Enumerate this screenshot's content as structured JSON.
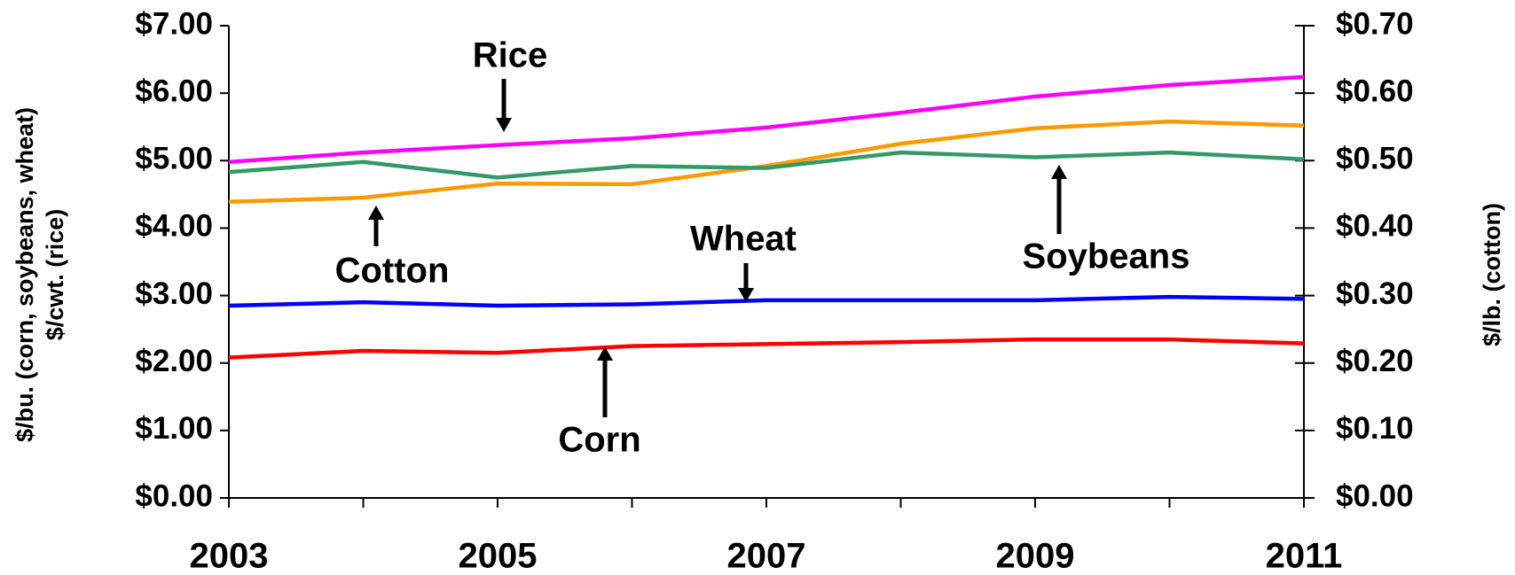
{
  "chart_data": {
    "type": "line",
    "x": [
      2003,
      2004,
      2005,
      2006,
      2007,
      2008,
      2009,
      2010,
      2011
    ],
    "xlim": [
      2003,
      2011
    ],
    "xticks": [
      2003,
      2005,
      2007,
      2009,
      2011
    ],
    "ylim": [
      0,
      7
    ],
    "yticks": [
      {
        "value": 0,
        "label": "$0.00"
      },
      {
        "value": 1,
        "label": "$1.00"
      },
      {
        "value": 2,
        "label": "$2.00"
      },
      {
        "value": 3,
        "label": "$3.00"
      },
      {
        "value": 4,
        "label": "$4.00"
      },
      {
        "value": 5,
        "label": "$5.00"
      },
      {
        "value": 6,
        "label": "$6.00"
      },
      {
        "value": 7,
        "label": "$7.00"
      }
    ],
    "y2lim": [
      0,
      0.7
    ],
    "y2ticks": [
      {
        "value": 0,
        "label": "$0.00"
      },
      {
        "value": 0.1,
        "label": "$0.10"
      },
      {
        "value": 0.2,
        "label": "$0.20"
      },
      {
        "value": 0.3,
        "label": "$0.30"
      },
      {
        "value": 0.4,
        "label": "$0.40"
      },
      {
        "value": 0.5,
        "label": "$0.50"
      },
      {
        "value": 0.6,
        "label": "$0.60"
      },
      {
        "value": 0.7,
        "label": "$0.70"
      }
    ],
    "y_label": [
      "$/bu. (corn, soybeans, wheat)",
      "$/cwt. (rice)"
    ],
    "y2_label": "$/lb. (cotton)",
    "series": [
      {
        "name": "Rice",
        "color": "#ff00ff",
        "values": [
          4.98,
          5.12,
          5.23,
          5.33,
          5.49,
          5.71,
          5.95,
          6.12,
          6.24
        ]
      },
      {
        "name": "Cotton",
        "color": "#ff9900",
        "axis": "y2",
        "values": [
          0.439,
          0.445,
          0.466,
          0.465,
          0.492,
          0.525,
          0.548,
          0.558,
          0.552
        ]
      },
      {
        "name": "Wheat",
        "color": "#0000ff",
        "values": [
          2.85,
          2.9,
          2.85,
          2.87,
          2.93,
          2.93,
          2.93,
          2.98,
          2.95
        ]
      },
      {
        "name": "Soybeans",
        "color": "#339966",
        "values": [
          4.83,
          4.98,
          4.75,
          4.92,
          4.89,
          5.12,
          5.05,
          5.12,
          5.02
        ]
      },
      {
        "name": "Corn",
        "color": "#ff0000",
        "values": [
          2.08,
          2.18,
          2.15,
          2.25,
          2.28,
          2.31,
          2.35,
          2.35,
          2.29
        ]
      }
    ]
  }
}
